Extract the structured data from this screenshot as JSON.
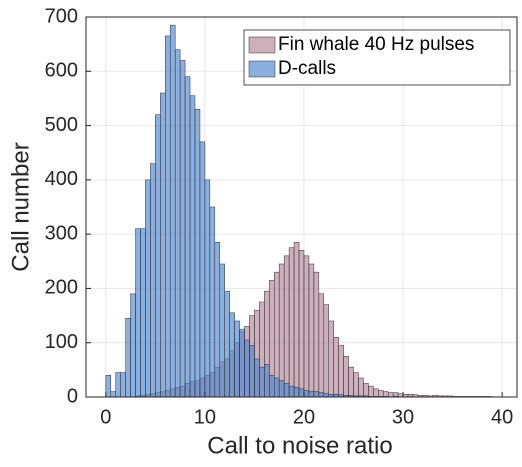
{
  "chart_data": {
    "type": "histogram",
    "xlabel": "Call to noise ratio",
    "ylabel": "Call number",
    "xlim": [
      -2,
      41.5
    ],
    "ylim": [
      0,
      700
    ],
    "xticks": [
      0,
      10,
      20,
      30,
      40
    ],
    "yticks": [
      0,
      100,
      200,
      300,
      400,
      500,
      600,
      700
    ],
    "grid": true,
    "legend": "upper right",
    "series": [
      {
        "name": "Fin whale 40 Hz pulses",
        "color": "#b28695",
        "bins": [
          0,
          0.5,
          1,
          1.5,
          2,
          2.5,
          3,
          3.5,
          4,
          4.5,
          5,
          5.5,
          6,
          6.5,
          7,
          7.5,
          8,
          8.5,
          9,
          9.5,
          10,
          10.5,
          11,
          11.5,
          12,
          12.5,
          13,
          13.5,
          14,
          14.5,
          15,
          15.5,
          16,
          16.5,
          17,
          17.5,
          18,
          18.5,
          19,
          19.5,
          20,
          20.5,
          21,
          21.5,
          22,
          22.5,
          23,
          23.5,
          24,
          24.5,
          25,
          25.5,
          26,
          26.5,
          27,
          27.5,
          28,
          28.5,
          29,
          29.5,
          30,
          30.5,
          31,
          31.5,
          32,
          32.5,
          33,
          33.5,
          34,
          34.5,
          35,
          35.5,
          36,
          36.5,
          37,
          37.5,
          38,
          38.5,
          39,
          39.5,
          40
        ],
        "values": [
          0,
          0,
          0,
          0,
          0,
          0,
          2,
          3,
          5,
          6,
          8,
          10,
          12,
          15,
          18,
          20,
          25,
          28,
          30,
          35,
          40,
          45,
          55,
          65,
          70,
          85,
          100,
          120,
          130,
          150,
          160,
          175,
          195,
          215,
          230,
          245,
          260,
          275,
          285,
          270,
          260,
          245,
          230,
          190,
          170,
          140,
          110,
          95,
          75,
          55,
          45,
          35,
          25,
          20,
          15,
          12,
          10,
          8,
          8,
          6,
          5,
          5,
          4,
          3,
          3,
          2,
          3,
          2,
          2,
          2,
          1,
          1,
          1,
          1,
          1,
          1,
          1,
          1,
          0,
          0
        ]
      },
      {
        "name": "D-calls",
        "color": "#4f86cc",
        "bins": [
          0,
          0.5,
          1,
          1.5,
          2,
          2.5,
          3,
          3.5,
          4,
          4.5,
          5,
          5.5,
          6,
          6.5,
          7,
          7.5,
          8,
          8.5,
          9,
          9.5,
          10,
          10.5,
          11,
          11.5,
          12,
          12.5,
          13,
          13.5,
          14,
          14.5,
          15,
          15.5,
          16,
          16.5,
          17,
          17.5,
          18,
          18.5,
          19,
          19.5,
          20,
          20.5,
          21,
          21.5,
          22,
          22.5,
          23,
          23.5,
          24,
          24.5,
          25,
          25.5,
          26,
          26.5,
          27,
          27.5,
          28,
          28.5,
          29,
          29.5,
          30
        ],
        "values": [
          40,
          10,
          45,
          45,
          145,
          190,
          310,
          310,
          400,
          430,
          520,
          560,
          665,
          685,
          640,
          620,
          590,
          555,
          530,
          470,
          400,
          350,
          285,
          245,
          195,
          155,
          140,
          125,
          105,
          95,
          70,
          55,
          60,
          40,
          35,
          30,
          25,
          20,
          18,
          15,
          12,
          10,
          10,
          8,
          6,
          5,
          5,
          4,
          3,
          3,
          2,
          2,
          2,
          1,
          1,
          1,
          1,
          0,
          1,
          0
        ]
      }
    ]
  }
}
